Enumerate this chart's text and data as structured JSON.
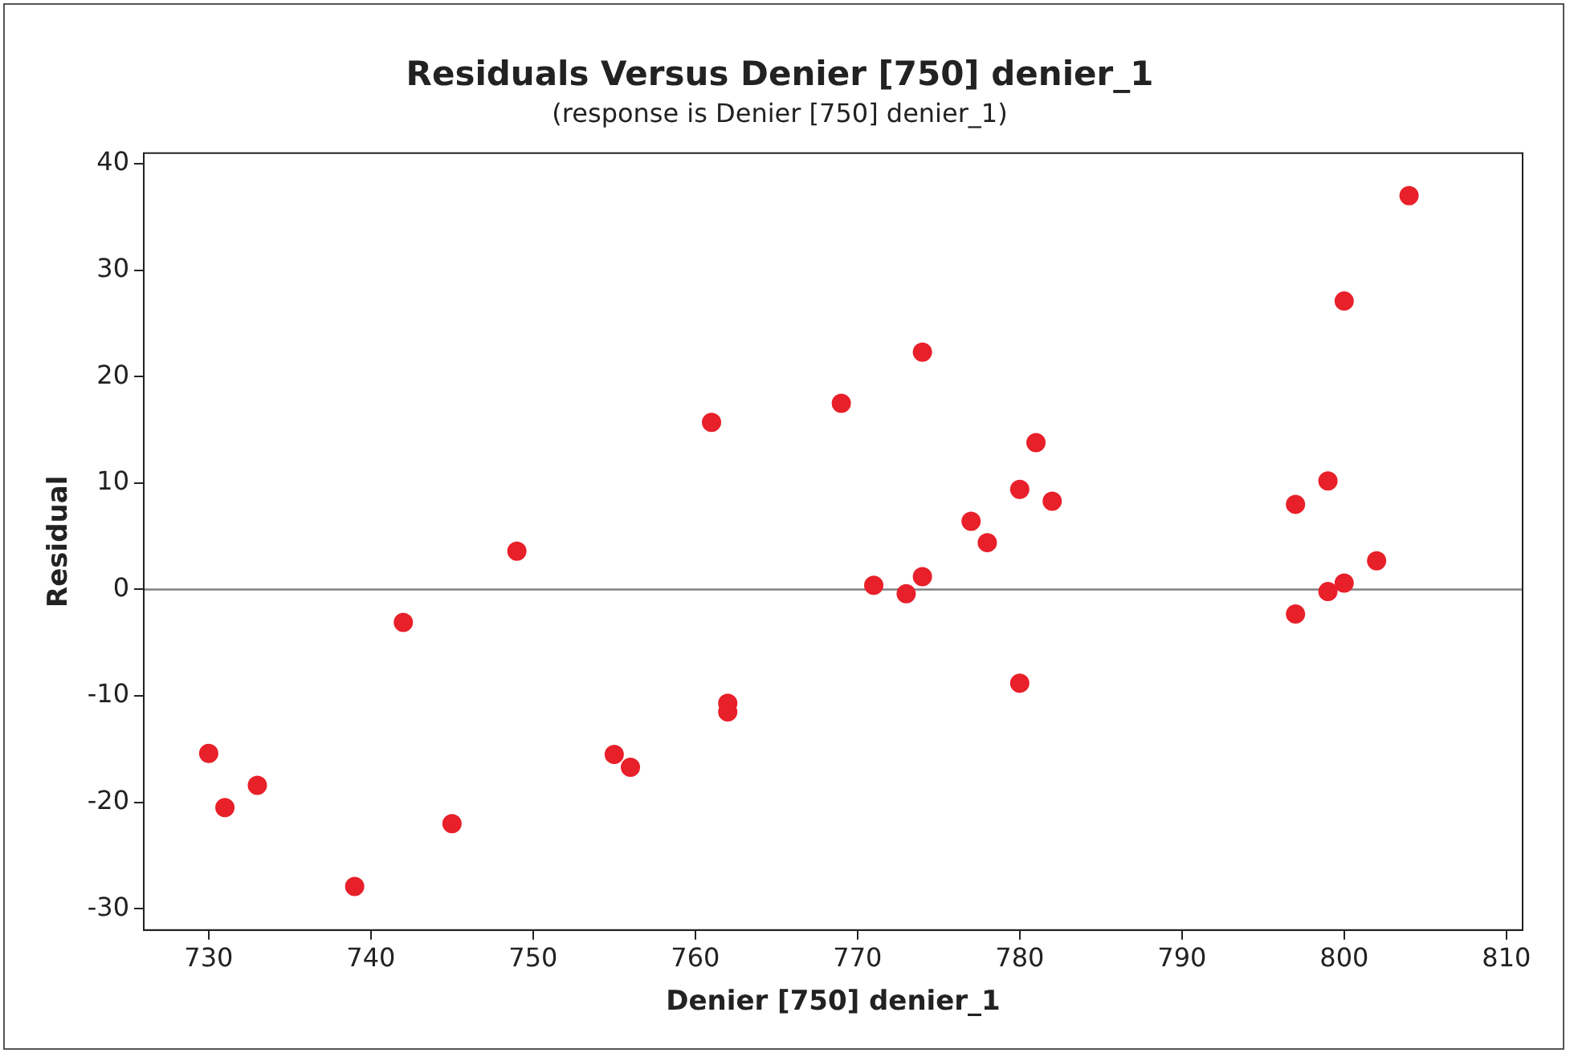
{
  "chart_data": {
    "type": "scatter",
    "title": "Residuals Versus Denier [750] denier_1",
    "subtitle": "(response is Denier [750] denier_1)",
    "xlabel": "Denier [750] denier_1",
    "ylabel": "Residual",
    "x": [
      730,
      731,
      733,
      739,
      742,
      745,
      749,
      755,
      756,
      761,
      762,
      762,
      769,
      771,
      773,
      774,
      774,
      777,
      778,
      780,
      780,
      781,
      782,
      797,
      797,
      799,
      799,
      800,
      800,
      802,
      804
    ],
    "series": [
      {
        "color": "#e8202a",
        "values": [
          -15.4,
          -20.5,
          -18.4,
          -27.9,
          -3.1,
          -22,
          3.6,
          -15.5,
          -16.7,
          15.7,
          -10.7,
          -11.5,
          17.5,
          0.4,
          -0.4,
          22.3,
          1.2,
          6.4,
          4.4,
          9.4,
          -8.8,
          13.8,
          8.3,
          8.0,
          -2.3,
          10.2,
          -0.2,
          27.1,
          0.6,
          2.7,
          37
        ]
      }
    ],
    "xlim": [
      726,
      811
    ],
    "xticks": [
      730,
      740,
      750,
      760,
      770,
      780,
      790,
      800,
      810
    ],
    "ylim": [
      -32,
      41
    ],
    "yticks": [
      -30,
      -20,
      -10,
      0,
      10,
      20,
      30,
      40
    ],
    "ref_lines": [
      {
        "axis": "y",
        "value": 0,
        "color": "#808080"
      }
    ],
    "marker": "circle",
    "grid": false,
    "legend": false
  }
}
